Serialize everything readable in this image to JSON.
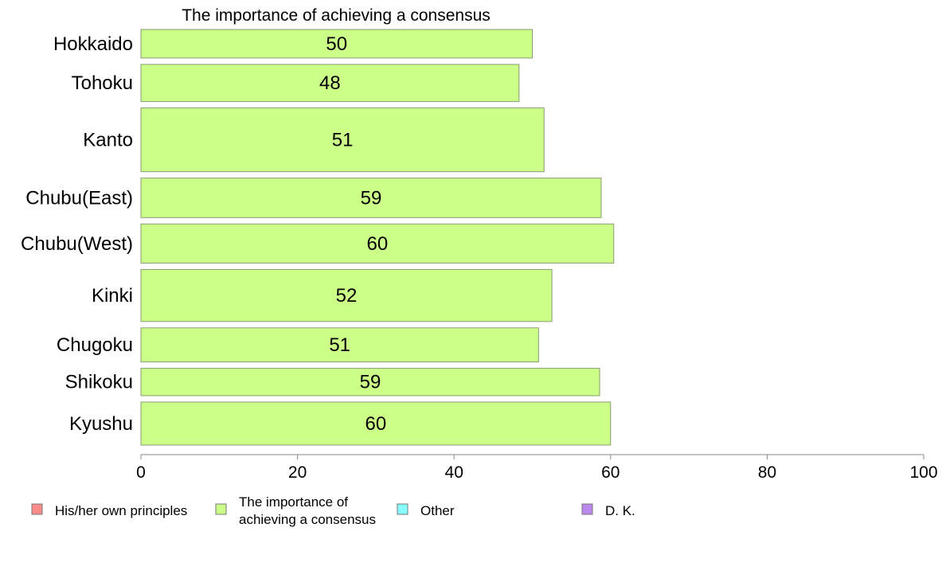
{
  "chart_data": {
    "type": "bar",
    "orientation": "horizontal",
    "title": "The importance of achieving a consensus",
    "xlabel": "",
    "ylabel": "",
    "xlim": [
      0,
      100
    ],
    "x_ticks": [
      0,
      20,
      40,
      60,
      80,
      100
    ],
    "grid": false,
    "bar_color": "#ccff88",
    "bar_edge_color": "#8a9a78",
    "categories": [
      "Hokkaido",
      "Tohoku",
      "Kanto",
      "Chubu(East)",
      "Chubu(West)",
      "Kinki",
      "Chugoku",
      "Shikoku",
      "Kyushu"
    ],
    "values": [
      50,
      48.3,
      51.5,
      58.8,
      60.4,
      52.5,
      50.8,
      58.6,
      60
    ],
    "value_labels": [
      "50",
      "48",
      "51",
      "59",
      "60",
      "52",
      "51",
      "59",
      "60"
    ],
    "bar_widths": [
      73,
      95,
      163,
      101,
      100,
      133,
      87,
      70,
      110
    ],
    "legend": {
      "placement": "bottom",
      "items": [
        {
          "label": "His/her own principles",
          "color": "#ff8a8a"
        },
        {
          "label": "The importance of\nachieving a consensus",
          "color": "#ccff88"
        },
        {
          "label": "Other",
          "color": "#88ffff"
        },
        {
          "label": "D. K.",
          "color": "#bb88ee"
        }
      ]
    }
  }
}
